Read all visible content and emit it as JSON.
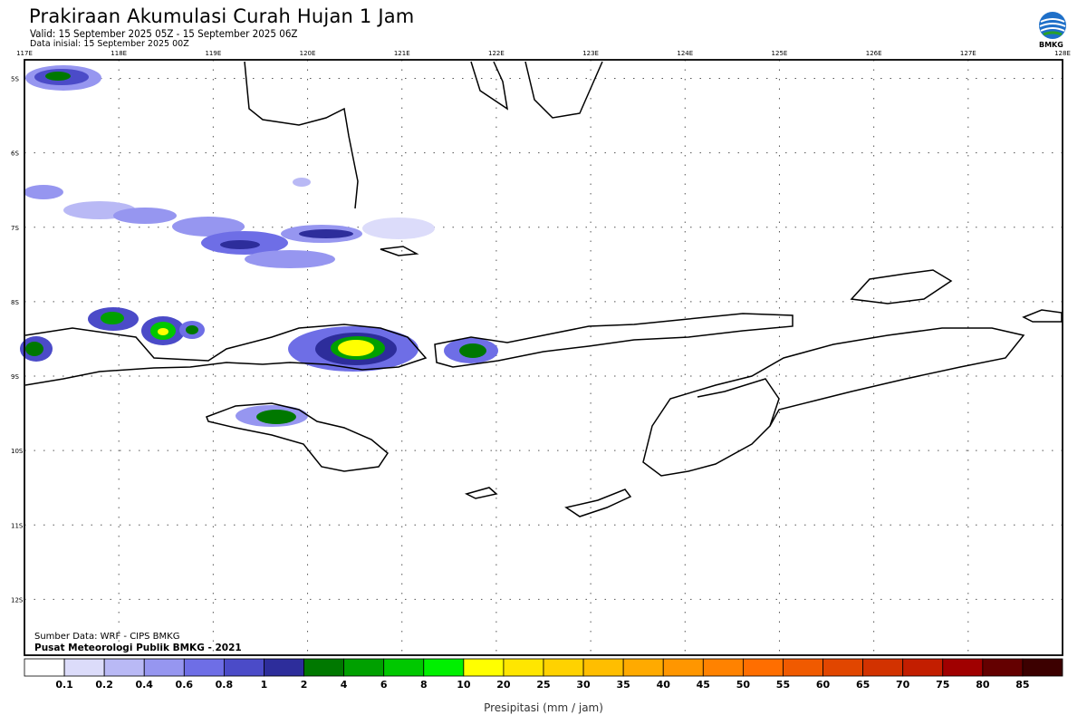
{
  "header": {
    "title": "Prakiraan Akumulasi Curah Hujan 1 Jam",
    "valid": "Valid: 15 September 2025 05Z - 15 September 2025 06Z",
    "initial": "Data inisial: 15 September 2025 00Z",
    "logo_label": "BMKG"
  },
  "map": {
    "lon_labels": [
      "117E",
      "118E",
      "119E",
      "120E",
      "121E",
      "122E",
      "123E",
      "124E",
      "125E",
      "126E",
      "127E",
      "128E"
    ],
    "lat_labels": [
      "5S",
      "6S",
      "7S",
      "8S",
      "9S",
      "10S",
      "11S",
      "12S"
    ],
    "lon_range": [
      117,
      128
    ],
    "lat_range": [
      -4.75,
      -12.75
    ],
    "grid": true
  },
  "footer": {
    "source": "Sumber Data: WRF - CIPS BMKG",
    "credit": "Pusat Meteorologi Publik BMKG - 2021"
  },
  "colorbar": {
    "label": "Presipitasi (mm / jam)",
    "ticks": [
      "0.1",
      "0.2",
      "0.4",
      "0.6",
      "0.8",
      "1",
      "2",
      "4",
      "6",
      "8",
      "10",
      "20",
      "25",
      "30",
      "35",
      "40",
      "45",
      "50",
      "55",
      "60",
      "65",
      "70",
      "75",
      "80",
      "85"
    ],
    "colors": [
      "#ffffff",
      "#dcdcfa",
      "#b9b9f5",
      "#9696f0",
      "#6e6ee6",
      "#4b4bc8",
      "#2d2d9b",
      "#007800",
      "#00a000",
      "#00c800",
      "#00f000",
      "#ffff00",
      "#ffe600",
      "#ffd200",
      "#ffbe00",
      "#ffaa00",
      "#ff9600",
      "#ff8200",
      "#ff6e00",
      "#f05a00",
      "#e14600",
      "#d23200",
      "#c31e00",
      "#a00000",
      "#640000",
      "#3c0000"
    ]
  }
}
